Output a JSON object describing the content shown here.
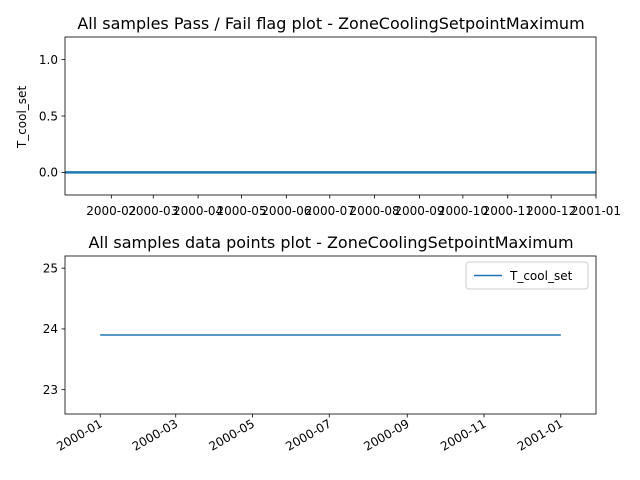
{
  "chart_data": [
    {
      "type": "line",
      "title": "All samples Pass / Fail flag plot - ZoneCoolingSetpointMaximum",
      "xlabel": "",
      "ylabel": "T_cool_set",
      "xlim": [
        "1999-12-31",
        "2001-01-01"
      ],
      "ylim": [
        -0.2,
        1.2
      ],
      "x_tick_labels": [
        "2000-02",
        "2000-03",
        "2000-04",
        "2000-05",
        "2000-06",
        "2000-07",
        "2000-08",
        "2000-09",
        "2000-10",
        "2000-11",
        "2000-12",
        "2001-01"
      ],
      "x_ticks": [
        "2000-02-01",
        "2000-03-01",
        "2000-04-01",
        "2000-05-01",
        "2000-06-01",
        "2000-07-01",
        "2000-08-01",
        "2000-09-01",
        "2000-10-01",
        "2000-11-01",
        "2000-12-01",
        "2001-01-01"
      ],
      "y_tick_labels": [
        "0.0",
        "0.5",
        "1.0"
      ],
      "y_ticks": [
        0.0,
        0.5,
        1.0
      ],
      "grid": false,
      "series": [
        {
          "color": "#1f77b4",
          "x": [
            "1999-12-31",
            "2001-01-01"
          ],
          "values": [
            0,
            0
          ]
        }
      ]
    },
    {
      "type": "line",
      "title": "All samples data points plot - ZoneCoolingSetpointMaximum",
      "xlabel": "",
      "ylabel": "",
      "xlim": [
        "1999-12-04",
        "2001-01-29"
      ],
      "ylim": [
        22.6,
        25.2
      ],
      "x_tick_labels": [
        "2000-01",
        "2000-03",
        "2000-05",
        "2000-07",
        "2000-09",
        "2000-11",
        "2001-01"
      ],
      "x_ticks": [
        "2000-01-01",
        "2000-03-01",
        "2000-05-01",
        "2000-07-01",
        "2000-09-01",
        "2000-11-01",
        "2001-01-01"
      ],
      "y_tick_labels": [
        "23",
        "24",
        "25"
      ],
      "y_ticks": [
        23,
        24,
        25
      ],
      "grid": false,
      "legend_position": "top-right",
      "series": [
        {
          "name": "T_cool_set",
          "color": "#1f77b4",
          "x": [
            "2000-01-01",
            "2001-01-01"
          ],
          "values": [
            23.9,
            23.9
          ]
        }
      ]
    }
  ]
}
